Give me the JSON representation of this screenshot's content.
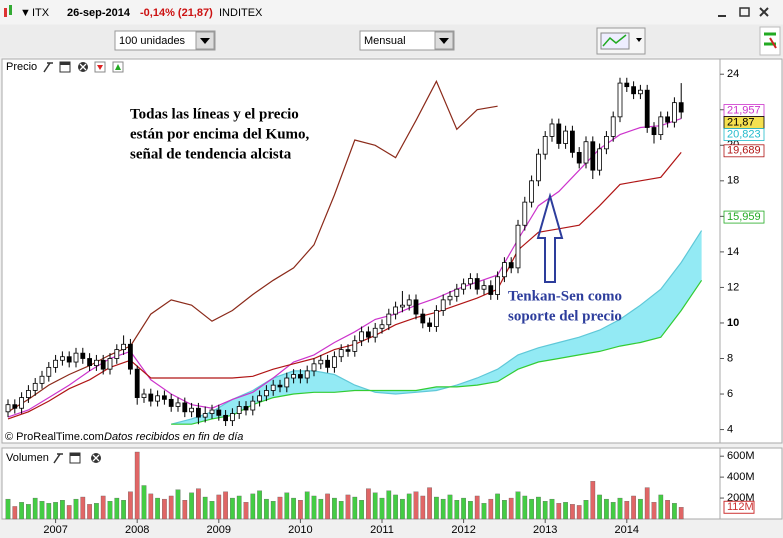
{
  "header": {
    "symbol": "ITX",
    "date": "26-sep-2014",
    "change": "-0,14% (21,87)",
    "name": "INDITEX"
  },
  "toolbar": {
    "quantity": "100 unidades",
    "period": "Mensual"
  },
  "chart_data": {
    "type": "candlestick",
    "price_panel": {
      "title": "Precio",
      "ylim": [
        3.3,
        24.8
      ],
      "yticks": [
        4,
        6,
        8,
        10,
        12,
        14,
        16,
        18,
        20,
        22,
        24
      ],
      "bold_ytick": 10,
      "up_color": "#ffffff",
      "down_color": "#000000",
      "candles": [
        [
          5.0,
          5.7,
          4.7,
          5.4
        ],
        [
          5.4,
          5.7,
          4.9,
          5.2
        ],
        [
          5.2,
          6.1,
          4.9,
          5.8
        ],
        [
          5.8,
          6.5,
          5.5,
          6.2
        ],
        [
          6.2,
          6.9,
          5.9,
          6.6
        ],
        [
          6.6,
          7.3,
          6.3,
          7.0
        ],
        [
          7.0,
          7.8,
          6.7,
          7.5
        ],
        [
          7.5,
          8.2,
          7.2,
          7.9
        ],
        [
          7.9,
          8.4,
          7.6,
          8.1
        ],
        [
          8.1,
          8.4,
          7.5,
          7.8
        ],
        [
          7.8,
          8.6,
          7.5,
          8.3
        ],
        [
          8.3,
          8.6,
          7.7,
          8.0
        ],
        [
          8.0,
          8.3,
          7.3,
          7.6
        ],
        [
          7.6,
          8.2,
          7.3,
          7.9
        ],
        [
          7.9,
          8.2,
          7.1,
          7.4
        ],
        [
          7.4,
          8.3,
          7.1,
          8.0
        ],
        [
          8.0,
          8.8,
          7.7,
          8.5
        ],
        [
          8.5,
          9.3,
          8.2,
          8.8
        ],
        [
          8.8,
          9.1,
          7.1,
          7.4
        ],
        [
          7.4,
          7.6,
          5.4,
          5.8
        ],
        [
          5.8,
          6.3,
          5.5,
          6.0
        ],
        [
          6.0,
          6.3,
          5.3,
          5.6
        ],
        [
          5.6,
          6.2,
          5.3,
          5.9
        ],
        [
          5.9,
          6.2,
          5.4,
          5.7
        ],
        [
          5.7,
          6.0,
          5.0,
          5.3
        ],
        [
          5.3,
          5.8,
          5.0,
          5.5
        ],
        [
          5.5,
          5.8,
          4.7,
          5.0
        ],
        [
          5.0,
          5.5,
          4.7,
          5.2
        ],
        [
          5.2,
          5.5,
          4.3,
          4.7
        ],
        [
          4.7,
          5.3,
          4.4,
          4.9
        ],
        [
          4.9,
          5.4,
          4.6,
          5.1
        ],
        [
          5.1,
          5.4,
          4.5,
          4.8
        ],
        [
          4.8,
          5.1,
          4.2,
          4.5
        ],
        [
          4.5,
          5.2,
          4.2,
          4.9
        ],
        [
          4.9,
          5.6,
          4.6,
          5.3
        ],
        [
          5.3,
          5.6,
          4.8,
          5.1
        ],
        [
          5.1,
          5.9,
          4.8,
          5.6
        ],
        [
          5.6,
          6.2,
          5.3,
          5.9
        ],
        [
          5.9,
          6.5,
          5.6,
          6.2
        ],
        [
          6.2,
          6.8,
          5.9,
          6.5
        ],
        [
          6.5,
          6.8,
          6.1,
          6.4
        ],
        [
          6.4,
          7.2,
          6.1,
          6.9
        ],
        [
          6.9,
          7.4,
          6.6,
          7.1
        ],
        [
          7.1,
          7.4,
          6.6,
          6.9
        ],
        [
          6.9,
          7.6,
          6.6,
          7.3
        ],
        [
          7.3,
          8.0,
          7.0,
          7.7
        ],
        [
          7.7,
          8.2,
          7.4,
          7.9
        ],
        [
          7.9,
          8.2,
          7.2,
          7.5
        ],
        [
          7.5,
          8.4,
          7.2,
          8.1
        ],
        [
          8.1,
          8.8,
          7.8,
          8.5
        ],
        [
          8.5,
          8.8,
          8.1,
          8.4
        ],
        [
          8.4,
          9.3,
          8.1,
          9.0
        ],
        [
          9.0,
          9.8,
          8.7,
          9.5
        ],
        [
          9.5,
          9.8,
          8.9,
          9.2
        ],
        [
          9.2,
          10.0,
          8.9,
          9.7
        ],
        [
          9.7,
          10.2,
          9.4,
          9.9
        ],
        [
          9.9,
          10.8,
          9.6,
          10.5
        ],
        [
          10.5,
          11.2,
          10.2,
          10.9
        ],
        [
          10.9,
          11.8,
          10.6,
          11.0
        ],
        [
          11.0,
          11.6,
          10.7,
          11.3
        ],
        [
          11.3,
          11.6,
          10.2,
          10.5
        ],
        [
          10.5,
          10.8,
          9.7,
          10.0
        ],
        [
          10.0,
          10.3,
          9.5,
          9.8
        ],
        [
          9.8,
          11.0,
          9.5,
          10.7
        ],
        [
          10.7,
          11.6,
          10.4,
          11.3
        ],
        [
          11.3,
          11.8,
          11.0,
          11.5
        ],
        [
          11.5,
          12.2,
          11.2,
          11.9
        ],
        [
          11.9,
          12.5,
          11.6,
          12.2
        ],
        [
          12.2,
          12.8,
          11.9,
          12.5
        ],
        [
          12.5,
          12.8,
          11.6,
          11.9
        ],
        [
          11.9,
          12.4,
          11.6,
          12.1
        ],
        [
          12.1,
          12.4,
          11.3,
          11.6
        ],
        [
          11.6,
          12.9,
          11.3,
          12.6
        ],
        [
          12.6,
          13.7,
          12.3,
          13.4
        ],
        [
          13.4,
          13.7,
          12.8,
          13.1
        ],
        [
          13.1,
          15.8,
          12.8,
          15.5
        ],
        [
          15.5,
          17.1,
          15.2,
          16.8
        ],
        [
          16.8,
          18.3,
          16.5,
          18.0
        ],
        [
          18.0,
          19.8,
          17.7,
          19.5
        ],
        [
          19.5,
          20.8,
          19.2,
          20.5
        ],
        [
          20.5,
          21.5,
          20.2,
          21.2
        ],
        [
          21.2,
          21.5,
          19.8,
          20.1
        ],
        [
          20.1,
          21.1,
          19.8,
          20.8
        ],
        [
          20.8,
          21.1,
          19.3,
          19.6
        ],
        [
          19.6,
          19.9,
          18.7,
          19.0
        ],
        [
          19.0,
          20.5,
          18.7,
          20.2
        ],
        [
          20.2,
          20.5,
          18.1,
          18.6
        ],
        [
          18.6,
          20.1,
          18.3,
          19.8
        ],
        [
          19.8,
          20.8,
          19.5,
          20.5
        ],
        [
          20.5,
          21.9,
          20.2,
          21.6
        ],
        [
          21.6,
          23.8,
          21.3,
          23.5
        ],
        [
          23.5,
          23.8,
          23.0,
          23.3
        ],
        [
          23.3,
          23.6,
          22.6,
          22.9
        ],
        [
          22.9,
          23.4,
          22.6,
          23.1
        ],
        [
          23.1,
          23.4,
          20.7,
          21.0
        ],
        [
          21.0,
          21.3,
          20.1,
          20.6
        ],
        [
          20.6,
          21.9,
          20.3,
          21.6
        ],
        [
          21.6,
          21.9,
          21.0,
          21.3
        ],
        [
          21.3,
          22.7,
          21.0,
          22.4
        ],
        [
          22.4,
          23.5,
          21.5,
          21.87
        ]
      ],
      "lines": [
        {
          "color": "#8b2a1a",
          "values": [
            5.0,
            5.7,
            6.5,
            7.1,
            7.6,
            8.2,
            8.7,
            10.5,
            11.3,
            11.0,
            10.1,
            10.7,
            11.6,
            12.4,
            13.1,
            14.4,
            17.2,
            20.3,
            20.0,
            19.3,
            21.4,
            23.6,
            20.9,
            22.0,
            22.2,
            null,
            null,
            null,
            null,
            null,
            null,
            null,
            null,
            null,
            null
          ]
        },
        {
          "color": "#cc33cc",
          "values": [
            4.7,
            5.1,
            5.8,
            6.5,
            7.3,
            8.0,
            8.4,
            6.8,
            6.0,
            5.4,
            5.2,
            5.7,
            6.1,
            6.9,
            7.8,
            8.2,
            8.9,
            9.5,
            10.2,
            10.5,
            11.0,
            11.4,
            11.9,
            12.3,
            12.7,
            14.7,
            16.6,
            17.4,
            18.6,
            19.8,
            20.6,
            21.0,
            21.1,
            21.5,
            null
          ]
        },
        {
          "color": "#b01515",
          "values": [
            4.6,
            5.0,
            5.6,
            6.3,
            6.8,
            7.5,
            7.9,
            6.9,
            6.9,
            6.9,
            6.9,
            6.9,
            7.0,
            7.4,
            7.7,
            8.0,
            8.5,
            8.8,
            9.3,
            9.9,
            10.3,
            10.6,
            11.0,
            11.4,
            11.9,
            14.1,
            15.1,
            15.3,
            15.5,
            16.6,
            17.8,
            18.0,
            18.2,
            19.6,
            null
          ]
        }
      ],
      "cloud": {
        "color": "#80e6f2",
        "span_a": {
          "color": "#5fc8d8",
          "values": [
            null,
            null,
            null,
            null,
            null,
            null,
            null,
            null,
            4.3,
            4.6,
            5.0,
            5.7,
            6.2,
            6.9,
            7.3,
            7.3,
            7.1,
            6.5,
            6.1,
            6.0,
            6.1,
            6.2,
            6.5,
            6.9,
            7.4,
            8.2,
            8.6,
            8.9,
            9.2,
            9.6,
            10.2,
            11.0,
            11.9,
            13.4,
            15.2
          ]
        },
        "span_b": {
          "color": "#33cc33",
          "values": [
            null,
            null,
            null,
            null,
            null,
            null,
            null,
            null,
            4.3,
            4.3,
            4.6,
            4.8,
            5.4,
            5.8,
            6.0,
            6.1,
            6.1,
            6.2,
            6.2,
            6.2,
            6.2,
            6.4,
            6.4,
            6.5,
            6.7,
            7.4,
            7.8,
            8.0,
            8.2,
            8.4,
            8.7,
            8.9,
            9.2,
            10.7,
            12.4
          ]
        }
      },
      "price_labels": [
        {
          "value": 21.957,
          "label": "21,957",
          "color": "#cc33cc",
          "fill": "#ffffff"
        },
        {
          "value": 21.87,
          "label": "21,87",
          "color": "#000000",
          "fill": "#f5e050"
        },
        {
          "value": 20.823,
          "label": "20,823",
          "color": "#22bbcc",
          "fill": "#ffffff"
        },
        {
          "value": 19.689,
          "label": "19,689",
          "color": "#b01515",
          "fill": "#ffffff"
        },
        {
          "value": 15.959,
          "label": "15,959",
          "color": "#22aa22",
          "fill": "#ffffff"
        }
      ]
    },
    "volume_panel": {
      "title": "Volumen",
      "ylim": [
        0,
        640000000.0
      ],
      "yticks": [
        {
          "value": 200000000.0,
          "label": "200M"
        },
        {
          "value": 400000000.0,
          "label": "400M"
        },
        {
          "value": 600000000.0,
          "label": "600M"
        }
      ],
      "up_color": "#44cc44",
      "down_color": "#e06666",
      "values": [
        190000000.0,
        120000000.0,
        160000000.0,
        140000000.0,
        200000000.0,
        170000000.0,
        150000000.0,
        160000000.0,
        180000000.0,
        130000000.0,
        190000000.0,
        210000000.0,
        140000000.0,
        150000000.0,
        220000000.0,
        170000000.0,
        200000000.0,
        180000000.0,
        260000000.0,
        640000000.0,
        320000000.0,
        240000000.0,
        200000000.0,
        190000000.0,
        220000000.0,
        280000000.0,
        180000000.0,
        250000000.0,
        290000000.0,
        210000000.0,
        170000000.0,
        230000000.0,
        260000000.0,
        200000000.0,
        220000000.0,
        160000000.0,
        240000000.0,
        270000000.0,
        190000000.0,
        170000000.0,
        210000000.0,
        250000000.0,
        200000000.0,
        180000000.0,
        260000000.0,
        220000000.0,
        190000000.0,
        240000000.0,
        200000000.0,
        170000000.0,
        230000000.0,
        210000000.0,
        180000000.0,
        290000000.0,
        250000000.0,
        200000000.0,
        270000000.0,
        230000000.0,
        190000000.0,
        240000000.0,
        260000000.0,
        220000000.0,
        300000000.0,
        210000000.0,
        190000000.0,
        230000000.0,
        180000000.0,
        200000000.0,
        170000000.0,
        220000000.0,
        150000000.0,
        190000000.0,
        240000000.0,
        180000000.0,
        200000000.0,
        260000000.0,
        220000000.0,
        190000000.0,
        210000000.0,
        170000000.0,
        190000000.0,
        150000000.0,
        160000000.0,
        140000000.0,
        130000000.0,
        180000000.0,
        360000000.0,
        230000000.0,
        190000000.0,
        160000000.0,
        200000000.0,
        170000000.0,
        220000000.0,
        190000000.0,
        300000000.0,
        160000000.0,
        230000000.0,
        180000000.0,
        150000000.0,
        112000000.0
      ],
      "last_label": {
        "value": 112000000.0,
        "label": "112M"
      }
    },
    "x_labels": [
      "2007",
      "2008",
      "2009",
      "2010",
      "2011",
      "2012",
      "2013",
      "2014"
    ],
    "annotations": [
      {
        "color": "#000000",
        "lines": [
          "Todas las líneas y el precio",
          "están por encima del Kumo,",
          "señal de tendencia alcista"
        ]
      },
      {
        "color": "#2d3d9c",
        "lines": [
          "Tenkan-Sen como",
          "soporte del precio"
        ]
      }
    ]
  },
  "footer": {
    "source": "© ProRealTime.com",
    "note": "Datos recibidos en fin de día"
  }
}
